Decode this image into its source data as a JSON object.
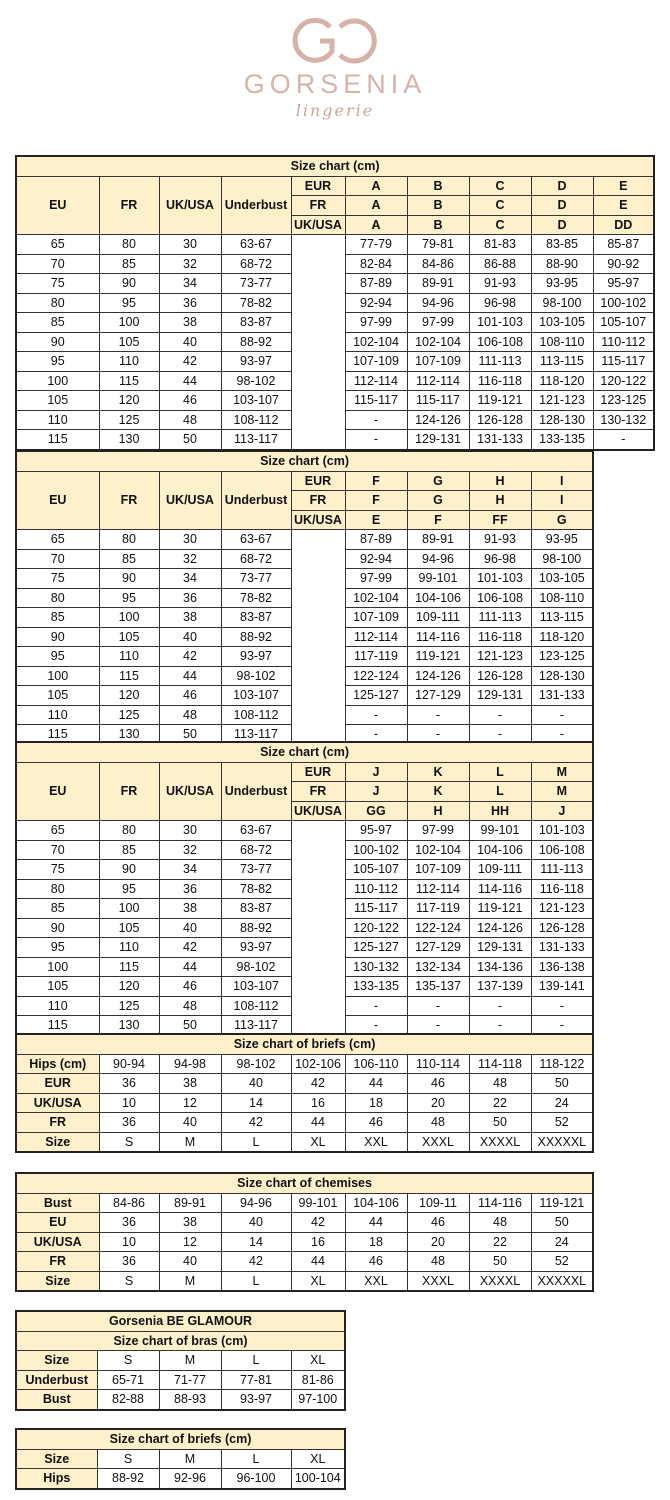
{
  "logo": {
    "brand": "GORSENIA",
    "sub": "lingerie",
    "monogram": "GO",
    "color": "#d6b2a9"
  },
  "colors": {
    "header_bg": "#fdf0cb",
    "border": "#222222"
  },
  "bra_tables": [
    {
      "title": "Size chart (cm)",
      "headers": {
        "eu": "EU",
        "fr": "FR",
        "ukusa": "UK/USA",
        "underbust": "Underbust"
      },
      "cup_rows": [
        {
          "label": "EUR",
          "cups": [
            "A",
            "B",
            "C",
            "D",
            "E"
          ]
        },
        {
          "label": "FR",
          "cups": [
            "A",
            "B",
            "C",
            "D",
            "E"
          ]
        },
        {
          "label": "UK/USA",
          "cups": [
            "A",
            "B",
            "C",
            "D",
            "DD"
          ]
        }
      ],
      "rows": [
        {
          "eu": "65",
          "fr": "80",
          "ukusa": "30",
          "underbust": "63-67",
          "values": [
            "77-79",
            "79-81",
            "81-83",
            "83-85",
            "85-87"
          ]
        },
        {
          "eu": "70",
          "fr": "85",
          "ukusa": "32",
          "underbust": "68-72",
          "values": [
            "82-84",
            "84-86",
            "86-88",
            "88-90",
            "90-92"
          ]
        },
        {
          "eu": "75",
          "fr": "90",
          "ukusa": "34",
          "underbust": "73-77",
          "values": [
            "87-89",
            "89-91",
            "91-93",
            "93-95",
            "95-97"
          ]
        },
        {
          "eu": "80",
          "fr": "95",
          "ukusa": "36",
          "underbust": "78-82",
          "values": [
            "92-94",
            "94-96",
            "96-98",
            "98-100",
            "100-102"
          ]
        },
        {
          "eu": "85",
          "fr": "100",
          "ukusa": "38",
          "underbust": "83-87",
          "values": [
            "97-99",
            "97-99",
            "101-103",
            "103-105",
            "105-107"
          ]
        },
        {
          "eu": "90",
          "fr": "105",
          "ukusa": "40",
          "underbust": "88-92",
          "values": [
            "102-104",
            "102-104",
            "106-108",
            "108-110",
            "110-112"
          ]
        },
        {
          "eu": "95",
          "fr": "110",
          "ukusa": "42",
          "underbust": "93-97",
          "values": [
            "107-109",
            "107-109",
            "111-113",
            "113-115",
            "115-117"
          ]
        },
        {
          "eu": "100",
          "fr": "115",
          "ukusa": "44",
          "underbust": "98-102",
          "values": [
            "112-114",
            "112-114",
            "116-118",
            "118-120",
            "120-122"
          ]
        },
        {
          "eu": "105",
          "fr": "120",
          "ukusa": "46",
          "underbust": "103-107",
          "values": [
            "115-117",
            "115-117",
            "119-121",
            "121-123",
            "123-125"
          ]
        },
        {
          "eu": "110",
          "fr": "125",
          "ukusa": "48",
          "underbust": "108-112",
          "values": [
            "-",
            "124-126",
            "126-128",
            "128-130",
            "130-132"
          ]
        },
        {
          "eu": "115",
          "fr": "130",
          "ukusa": "50",
          "underbust": "113-117",
          "values": [
            "-",
            "129-131",
            "131-133",
            "133-135",
            "-"
          ]
        }
      ]
    },
    {
      "title": "Size chart (cm)",
      "headers": {
        "eu": "EU",
        "fr": "FR",
        "ukusa": "UK/USA",
        "underbust": "Underbust"
      },
      "cup_rows": [
        {
          "label": "EUR",
          "cups": [
            "F",
            "G",
            "H",
            "I"
          ]
        },
        {
          "label": "FR",
          "cups": [
            "F",
            "G",
            "H",
            "I"
          ]
        },
        {
          "label": "UK/USA",
          "cups": [
            "E",
            "F",
            "FF",
            "G"
          ]
        }
      ],
      "rows": [
        {
          "eu": "65",
          "fr": "80",
          "ukusa": "30",
          "underbust": "63-67",
          "values": [
            "87-89",
            "89-91",
            "91-93",
            "93-95"
          ]
        },
        {
          "eu": "70",
          "fr": "85",
          "ukusa": "32",
          "underbust": "68-72",
          "values": [
            "92-94",
            "94-96",
            "96-98",
            "98-100"
          ]
        },
        {
          "eu": "75",
          "fr": "90",
          "ukusa": "34",
          "underbust": "73-77",
          "values": [
            "97-99",
            "99-101",
            "101-103",
            "103-105"
          ]
        },
        {
          "eu": "80",
          "fr": "95",
          "ukusa": "36",
          "underbust": "78-82",
          "values": [
            "102-104",
            "104-106",
            "106-108",
            "108-110"
          ]
        },
        {
          "eu": "85",
          "fr": "100",
          "ukusa": "38",
          "underbust": "83-87",
          "values": [
            "107-109",
            "109-111",
            "111-113",
            "113-115"
          ]
        },
        {
          "eu": "90",
          "fr": "105",
          "ukusa": "40",
          "underbust": "88-92",
          "values": [
            "112-114",
            "114-116",
            "116-118",
            "118-120"
          ]
        },
        {
          "eu": "95",
          "fr": "110",
          "ukusa": "42",
          "underbust": "93-97",
          "values": [
            "117-119",
            "119-121",
            "121-123",
            "123-125"
          ]
        },
        {
          "eu": "100",
          "fr": "115",
          "ukusa": "44",
          "underbust": "98-102",
          "values": [
            "122-124",
            "124-126",
            "126-128",
            "128-130"
          ]
        },
        {
          "eu": "105",
          "fr": "120",
          "ukusa": "46",
          "underbust": "103-107",
          "values": [
            "125-127",
            "127-129",
            "129-131",
            "131-133"
          ]
        },
        {
          "eu": "110",
          "fr": "125",
          "ukusa": "48",
          "underbust": "108-112",
          "values": [
            "-",
            "-",
            "-",
            "-"
          ]
        },
        {
          "eu": "115",
          "fr": "130",
          "ukusa": "50",
          "underbust": "113-117",
          "values": [
            "-",
            "-",
            "-",
            "-"
          ]
        }
      ]
    },
    {
      "title": "Size chart (cm)",
      "headers": {
        "eu": "EU",
        "fr": "FR",
        "ukusa": "UK/USA",
        "underbust": "Underbust"
      },
      "cup_rows": [
        {
          "label": "EUR",
          "cups": [
            "J",
            "K",
            "L",
            "M"
          ]
        },
        {
          "label": "FR",
          "cups": [
            "J",
            "K",
            "L",
            "M"
          ]
        },
        {
          "label": "UK/USA",
          "cups": [
            "GG",
            "H",
            "HH",
            "J"
          ]
        }
      ],
      "rows": [
        {
          "eu": "65",
          "fr": "80",
          "ukusa": "30",
          "underbust": "63-67",
          "values": [
            "95-97",
            "97-99",
            "99-101",
            "101-103"
          ]
        },
        {
          "eu": "70",
          "fr": "85",
          "ukusa": "32",
          "underbust": "68-72",
          "values": [
            "100-102",
            "102-104",
            "104-106",
            "106-108"
          ]
        },
        {
          "eu": "75",
          "fr": "90",
          "ukusa": "34",
          "underbust": "73-77",
          "values": [
            "105-107",
            "107-109",
            "109-111",
            "111-113"
          ]
        },
        {
          "eu": "80",
          "fr": "95",
          "ukusa": "36",
          "underbust": "78-82",
          "values": [
            "110-112",
            "112-114",
            "114-116",
            "116-118"
          ]
        },
        {
          "eu": "85",
          "fr": "100",
          "ukusa": "38",
          "underbust": "83-87",
          "values": [
            "115-117",
            "117-119",
            "119-121",
            "121-123"
          ]
        },
        {
          "eu": "90",
          "fr": "105",
          "ukusa": "40",
          "underbust": "88-92",
          "values": [
            "120-122",
            "122-124",
            "124-126",
            "126-128"
          ]
        },
        {
          "eu": "95",
          "fr": "110",
          "ukusa": "42",
          "underbust": "93-97",
          "values": [
            "125-127",
            "127-129",
            "129-131",
            "131-133"
          ]
        },
        {
          "eu": "100",
          "fr": "115",
          "ukusa": "44",
          "underbust": "98-102",
          "values": [
            "130-132",
            "132-134",
            "134-136",
            "136-138"
          ]
        },
        {
          "eu": "105",
          "fr": "120",
          "ukusa": "46",
          "underbust": "103-107",
          "values": [
            "133-135",
            "135-137",
            "137-139",
            "139-141"
          ]
        },
        {
          "eu": "110",
          "fr": "125",
          "ukusa": "48",
          "underbust": "108-112",
          "values": [
            "-",
            "-",
            "-",
            "-"
          ]
        },
        {
          "eu": "115",
          "fr": "130",
          "ukusa": "50",
          "underbust": "113-117",
          "values": [
            "-",
            "-",
            "-",
            "-"
          ]
        }
      ]
    }
  ],
  "simple_tables": [
    {
      "titles": [
        "Size chart of briefs (cm)"
      ],
      "rows": [
        {
          "label": "Hips (cm)",
          "values": [
            "90-94",
            "94-98",
            "98-102",
            "102-106",
            "106-110",
            "110-114",
            "114-118",
            "118-122"
          ]
        },
        {
          "label": "EUR",
          "values": [
            "36",
            "38",
            "40",
            "42",
            "44",
            "46",
            "48",
            "50"
          ]
        },
        {
          "label": "UK/USA",
          "values": [
            "10",
            "12",
            "14",
            "16",
            "18",
            "20",
            "22",
            "24"
          ]
        },
        {
          "label": "FR",
          "values": [
            "36",
            "40",
            "42",
            "44",
            "46",
            "48",
            "50",
            "52"
          ]
        },
        {
          "label": "Size",
          "values": [
            "S",
            "M",
            "L",
            "XL",
            "XXL",
            "XXXL",
            "XXXXL",
            "XXXXXL"
          ]
        }
      ]
    },
    {
      "titles": [
        "Size chart of chemises"
      ],
      "rows": [
        {
          "label": "Bust",
          "values": [
            "84-86",
            "89-91",
            "94-96",
            "99-101",
            "104-106",
            "109-11",
            "114-116",
            "119-121"
          ]
        },
        {
          "label": "EU",
          "values": [
            "36",
            "38",
            "40",
            "42",
            "44",
            "46",
            "48",
            "50"
          ]
        },
        {
          "label": "UK/USA",
          "values": [
            "10",
            "12",
            "14",
            "16",
            "18",
            "20",
            "22",
            "24"
          ]
        },
        {
          "label": "FR",
          "values": [
            "36",
            "40",
            "42",
            "44",
            "46",
            "48",
            "50",
            "52"
          ]
        },
        {
          "label": "Size",
          "values": [
            "S",
            "M",
            "L",
            "XL",
            "XXL",
            "XXXL",
            "XXXXL",
            "XXXXXL"
          ]
        }
      ]
    },
    {
      "titles": [
        "Gorsenia BE GLAMOUR",
        "Size chart of bras (cm)"
      ],
      "rows": [
        {
          "label": "Size",
          "values": [
            "S",
            "M",
            "L",
            "XL"
          ]
        },
        {
          "label": "Underbust",
          "values": [
            "65-71",
            "71-77",
            "77-81",
            "81-86"
          ]
        },
        {
          "label": "Bust",
          "values": [
            "82-88",
            "88-93",
            "93-97",
            "97-100"
          ]
        }
      ]
    },
    {
      "titles": [
        "Size chart of briefs (cm)"
      ],
      "rows": [
        {
          "label": "Size",
          "values": [
            "S",
            "M",
            "L",
            "XL"
          ]
        },
        {
          "label": "Hips",
          "values": [
            "88-92",
            "92-96",
            "96-100",
            "100-104"
          ]
        }
      ]
    }
  ]
}
